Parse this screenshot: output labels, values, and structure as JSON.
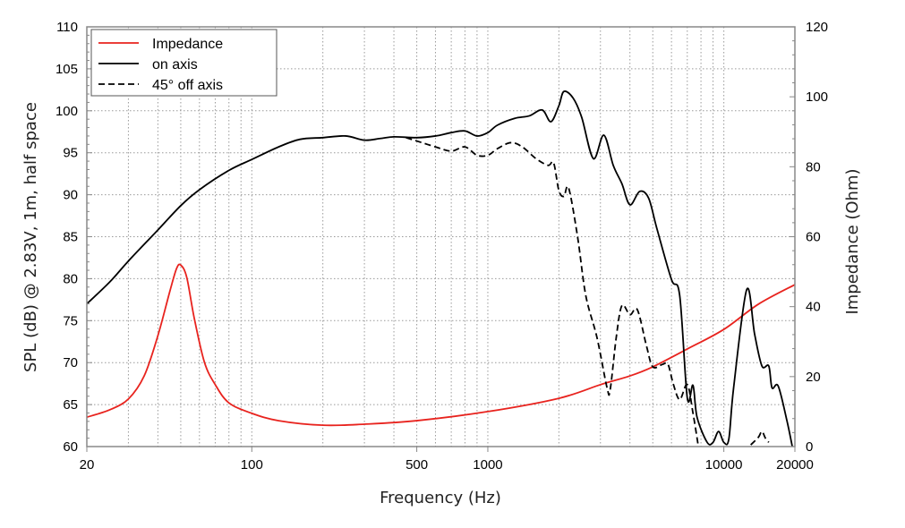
{
  "chart_data": {
    "type": "line",
    "xlabel": "Frequency (Hz)",
    "ylabel": "SPL (dB) @ 2.83V, 1m, half space",
    "y2label": "Impedance (Ohm)",
    "xscale": "log",
    "xlim": [
      20,
      20000
    ],
    "ylim": [
      60,
      110
    ],
    "y2lim": [
      0,
      120
    ],
    "grid": true,
    "legend_position": "top-left",
    "xticks": [
      "20",
      "100",
      "500",
      "1000",
      "10000",
      "20000"
    ],
    "yticks": [
      "60",
      "65",
      "70",
      "75",
      "80",
      "85",
      "90",
      "95",
      "100",
      "105",
      "110"
    ],
    "y2ticks": [
      "0",
      "20",
      "40",
      "60",
      "80",
      "100",
      "120"
    ],
    "series": [
      {
        "name": "Impedance",
        "axis": "right",
        "color": "#e8231e",
        "style": "solid",
        "points": [
          [
            20,
            8.4
          ],
          [
            25,
            10.5
          ],
          [
            30,
            13.6
          ],
          [
            35,
            20.2
          ],
          [
            40,
            31.7
          ],
          [
            45,
            44.5
          ],
          [
            48,
            50.9
          ],
          [
            50,
            51.9
          ],
          [
            53,
            48.4
          ],
          [
            57,
            36.8
          ],
          [
            63,
            24.1
          ],
          [
            70,
            17.7
          ],
          [
            80,
            12.5
          ],
          [
            100,
            9.5
          ],
          [
            130,
            7.4
          ],
          [
            200,
            6.1
          ],
          [
            300,
            6.4
          ],
          [
            500,
            7.4
          ],
          [
            1000,
            10.0
          ],
          [
            2000,
            13.8
          ],
          [
            3000,
            17.7
          ],
          [
            4000,
            20.2
          ],
          [
            5000,
            22.8
          ],
          [
            7000,
            27.9
          ],
          [
            10000,
            33.5
          ],
          [
            14000,
            40.7
          ],
          [
            20000,
            46.3
          ]
        ]
      },
      {
        "name": "on axis",
        "axis": "left",
        "color": "#000000",
        "style": "solid",
        "points": [
          [
            20,
            77.0
          ],
          [
            25,
            79.6
          ],
          [
            30,
            82.1
          ],
          [
            40,
            85.8
          ],
          [
            50,
            88.7
          ],
          [
            60,
            90.6
          ],
          [
            80,
            92.9
          ],
          [
            100,
            94.2
          ],
          [
            130,
            95.7
          ],
          [
            160,
            96.6
          ],
          [
            200,
            96.8
          ],
          [
            250,
            97.0
          ],
          [
            300,
            96.5
          ],
          [
            350,
            96.7
          ],
          [
            400,
            96.9
          ],
          [
            500,
            96.8
          ],
          [
            600,
            97.0
          ],
          [
            700,
            97.4
          ],
          [
            800,
            97.6
          ],
          [
            900,
            97.0
          ],
          [
            1000,
            97.4
          ],
          [
            1100,
            98.3
          ],
          [
            1300,
            99.1
          ],
          [
            1500,
            99.4
          ],
          [
            1700,
            100.1
          ],
          [
            1850,
            98.7
          ],
          [
            2000,
            100.6
          ],
          [
            2100,
            102.3
          ],
          [
            2300,
            101.5
          ],
          [
            2500,
            99.2
          ],
          [
            2800,
            94.3
          ],
          [
            3100,
            97.1
          ],
          [
            3400,
            93.5
          ],
          [
            3700,
            91.3
          ],
          [
            4000,
            88.8
          ],
          [
            4400,
            90.4
          ],
          [
            4800,
            89.6
          ],
          [
            5200,
            86.0
          ],
          [
            6000,
            79.9
          ],
          [
            6500,
            78.0
          ],
          [
            7000,
            65.8
          ],
          [
            7400,
            67.3
          ],
          [
            7700,
            63.5
          ],
          [
            8500,
            60.5
          ],
          [
            9000,
            60.5
          ],
          [
            9500,
            61.8
          ],
          [
            10000,
            60.5
          ],
          [
            10500,
            60.9
          ],
          [
            11000,
            67.0
          ],
          [
            12500,
            78.7
          ],
          [
            13500,
            73.4
          ],
          [
            14500,
            69.6
          ],
          [
            15500,
            69.6
          ],
          [
            16000,
            67.0
          ],
          [
            17000,
            67.2
          ],
          [
            18500,
            63.1
          ],
          [
            19500,
            60.0
          ]
        ]
      },
      {
        "name": "45° off axis",
        "axis": "left",
        "color": "#000000",
        "style": "dashed",
        "points": [
          [
            450,
            96.8
          ],
          [
            500,
            96.4
          ],
          [
            600,
            95.7
          ],
          [
            700,
            95.2
          ],
          [
            800,
            95.7
          ],
          [
            900,
            94.7
          ],
          [
            1000,
            94.7
          ],
          [
            1100,
            95.5
          ],
          [
            1250,
            96.2
          ],
          [
            1400,
            95.7
          ],
          [
            1600,
            94.3
          ],
          [
            1800,
            93.5
          ],
          [
            1900,
            93.8
          ],
          [
            2000,
            90.5
          ],
          [
            2100,
            89.8
          ],
          [
            2200,
            90.8
          ],
          [
            2400,
            85.0
          ],
          [
            2600,
            78.0
          ],
          [
            2900,
            73.0
          ],
          [
            3200,
            67.0
          ],
          [
            3300,
            66.8
          ],
          [
            3500,
            73.0
          ],
          [
            3700,
            76.8
          ],
          [
            4000,
            75.7
          ],
          [
            4300,
            76.3
          ],
          [
            4700,
            72.0
          ],
          [
            5000,
            69.5
          ],
          [
            5500,
            69.8
          ],
          [
            5800,
            69.8
          ],
          [
            6100,
            67.5
          ],
          [
            6500,
            65.6
          ],
          [
            7000,
            67.4
          ],
          [
            7400,
            64.0
          ],
          [
            7800,
            60.0
          ]
        ],
        "extra_points": [
          [
            13000,
            60.2
          ],
          [
            14000,
            61.1
          ],
          [
            14500,
            61.8
          ],
          [
            15000,
            61.0
          ],
          [
            15500,
            60.5
          ]
        ]
      }
    ]
  }
}
